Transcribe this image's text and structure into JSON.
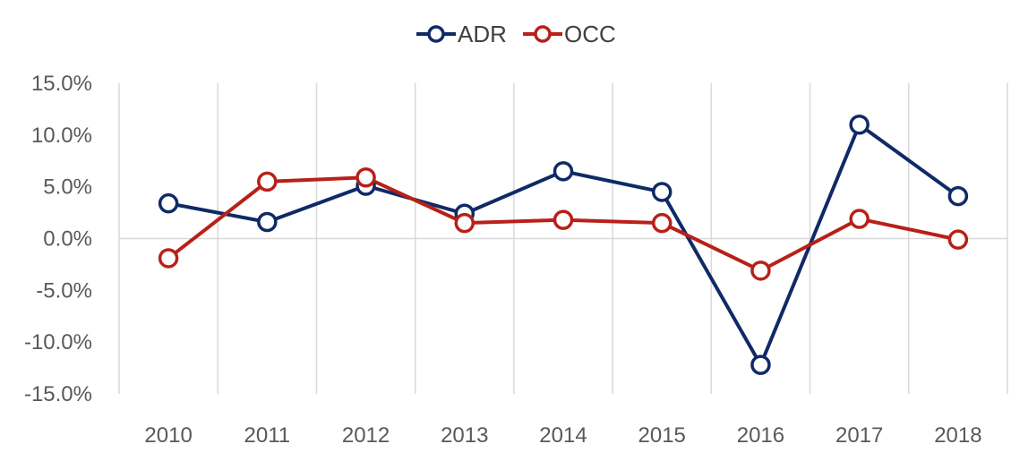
{
  "chart_data": {
    "type": "line",
    "title": "",
    "xlabel": "",
    "ylabel": "",
    "categories": [
      "2010",
      "2011",
      "2012",
      "2013",
      "2014",
      "2015",
      "2016",
      "2017",
      "2018"
    ],
    "ylim": [
      -15,
      15
    ],
    "y_ticks": [
      15,
      10,
      5,
      0,
      -5,
      -10,
      -15
    ],
    "y_tick_labels": [
      "15.0%",
      "10.0%",
      "5.0%",
      "0.0%",
      "-5.0%",
      "-10.0%",
      "-15.0%"
    ],
    "grid": "vertical",
    "legend_position": "top-center",
    "series": [
      {
        "name": "ADR",
        "color": "#0f2a66",
        "values": [
          3.4,
          1.6,
          5.1,
          2.4,
          6.5,
          4.5,
          -12.2,
          11.0,
          4.1
        ]
      },
      {
        "name": "OCC",
        "color": "#b82018",
        "values": [
          -1.9,
          5.5,
          5.9,
          1.5,
          1.8,
          1.5,
          -3.1,
          1.9,
          -0.1
        ]
      }
    ]
  }
}
